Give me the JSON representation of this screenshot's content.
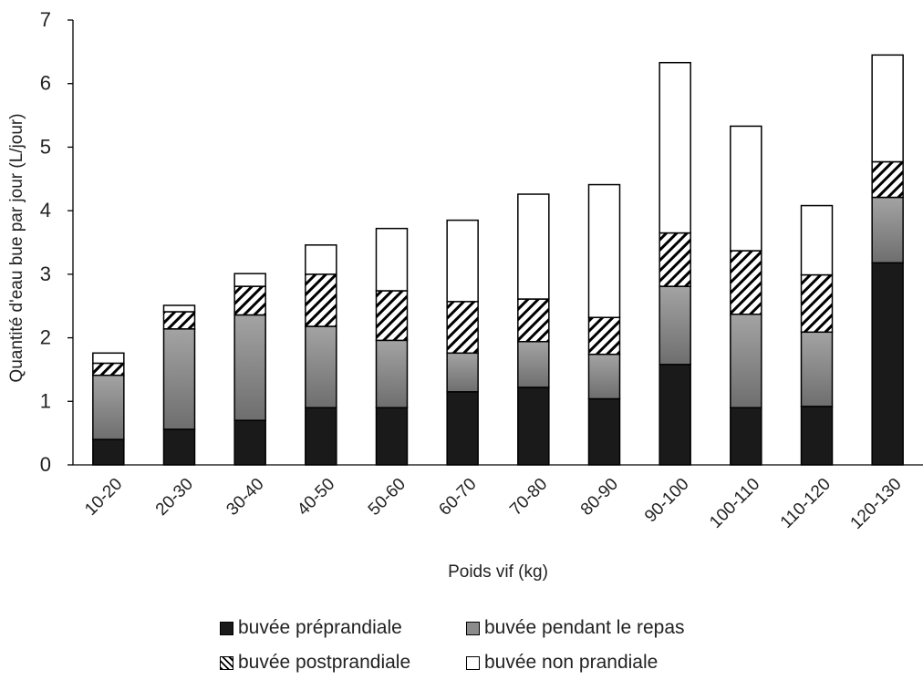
{
  "chart_data": {
    "type": "bar",
    "stacked": true,
    "title": "",
    "xlabel": "Poids vif (kg)",
    "ylabel": "Quantité d'eau bue par jour (L/jour)",
    "ylim": [
      0,
      7
    ],
    "yticks": [
      "0",
      "1",
      "2",
      "3",
      "4",
      "5",
      "6",
      "7"
    ],
    "grid": false,
    "legend_position": "bottom",
    "categories": [
      "10-20",
      "20-30",
      "30-40",
      "40-50",
      "50-60",
      "60-70",
      "70-80",
      "80-90",
      "90-100",
      "100-110",
      "110-120",
      "120-130"
    ],
    "series": [
      {
        "name": "buvée préprandiale",
        "pattern": "solid",
        "color": "#1a1a1a",
        "values": [
          0.4,
          0.56,
          0.7,
          0.9,
          0.9,
          1.15,
          1.22,
          1.04,
          1.58,
          0.9,
          0.92,
          3.18
        ]
      },
      {
        "name": "buvée pendant le repas",
        "pattern": "gradient",
        "color": "#8c8c8c",
        "values": [
          1.01,
          1.58,
          1.66,
          1.28,
          1.06,
          0.61,
          0.72,
          0.7,
          1.23,
          1.47,
          1.17,
          1.03
        ]
      },
      {
        "name": "buvée postprandiale",
        "pattern": "hatch",
        "color": "#000000",
        "values": [
          0.19,
          0.27,
          0.45,
          0.82,
          0.78,
          0.81,
          0.67,
          0.58,
          0.84,
          1.0,
          0.9,
          0.56
        ]
      },
      {
        "name": "buvée non prandiale",
        "pattern": "white",
        "color": "#ffffff",
        "values": [
          0.16,
          0.1,
          0.2,
          0.46,
          0.98,
          1.28,
          1.65,
          2.09,
          2.68,
          1.96,
          1.09,
          1.68
        ]
      }
    ]
  }
}
